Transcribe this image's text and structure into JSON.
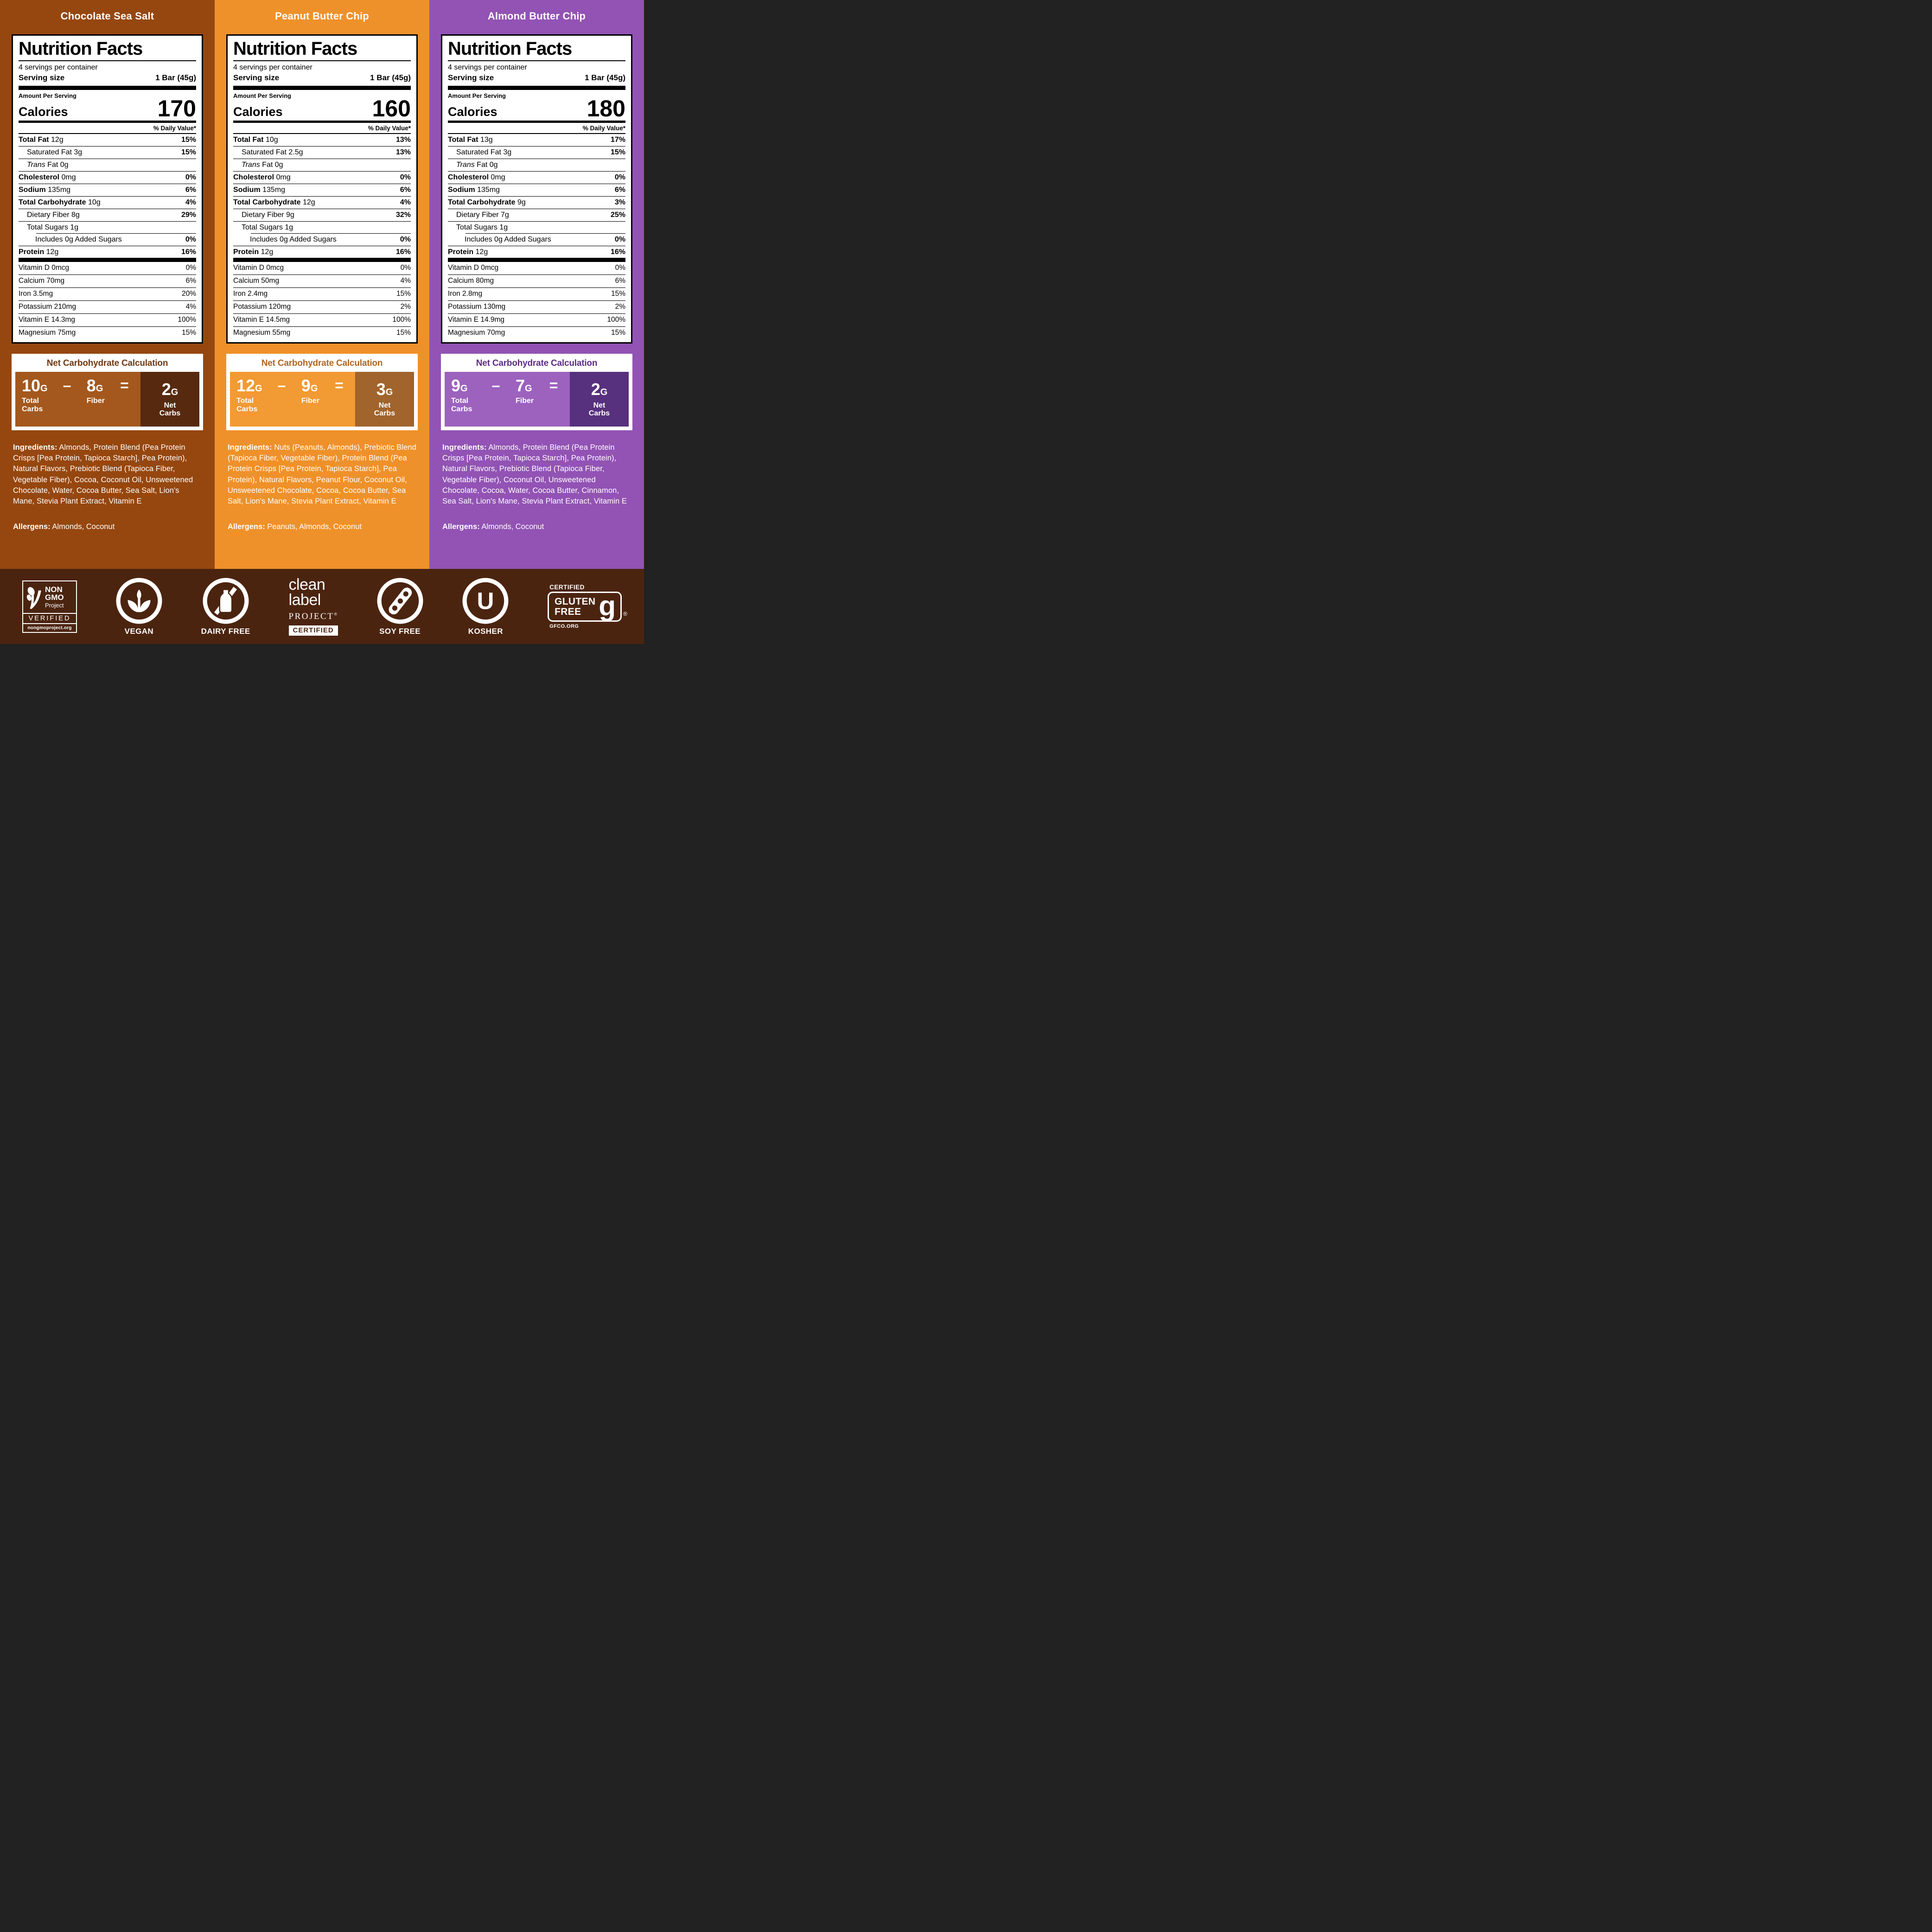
{
  "columns": [
    {
      "flavor": "Chocolate Sea Salt",
      "theme": {
        "bg": "#96470F",
        "nc_title": "#703A16",
        "nc_left": "#A4581D",
        "nc_dark": "#572A10"
      },
      "nutrition": {
        "title": "Nutrition Facts",
        "servings_per_container": "4 servings per container",
        "serving_size_label": "Serving size",
        "serving_size_value": "1 Bar (45g)",
        "amount_per_serving": "Amount Per Serving",
        "calories_label": "Calories",
        "calories_value": "170",
        "daily_value_header": "% Daily Value*",
        "rows": [
          {
            "label": "Total Fat",
            "value": "12g",
            "dv": "15%",
            "bold": true,
            "indent": 0
          },
          {
            "label": "Saturated Fat",
            "value": "3g",
            "dv": "15%",
            "indent": 1
          },
          {
            "italic_prefix": "Trans",
            "label": "Fat",
            "value": "0g",
            "dv": "",
            "indent": 1
          },
          {
            "label": "Cholesterol",
            "value": "0mg",
            "dv": "0%",
            "bold": true,
            "indent": 0
          },
          {
            "label": "Sodium",
            "value": "135mg",
            "dv": "6%",
            "bold": true,
            "indent": 0
          },
          {
            "label": "Total Carbohydrate",
            "value": "10g",
            "dv": "4%",
            "bold": true,
            "indent": 0
          },
          {
            "label": "Dietary Fiber",
            "value": "8g",
            "dv": "29%",
            "indent": 1
          },
          {
            "label": "Total Sugars",
            "value": "1g",
            "dv": "",
            "indent": 1
          },
          {
            "label": "Includes 0g Added Sugars",
            "value": "",
            "dv": "0%",
            "indent": 2
          },
          {
            "label": "Protein",
            "value": "12g",
            "dv": "16%",
            "bold": true,
            "indent": 0
          }
        ],
        "micros": [
          {
            "label": "Vitamin D 0mcg",
            "dv": "0%"
          },
          {
            "label": "Calcium 70mg",
            "dv": "6%"
          },
          {
            "label": "Iron 3.5mg",
            "dv": "20%"
          },
          {
            "label": "Potassium 210mg",
            "dv": "4%"
          },
          {
            "label": "Vitamin E 14.3mg",
            "dv": "100%"
          },
          {
            "label": "Magnesium 75mg",
            "dv": "15%"
          }
        ]
      },
      "net_carbs": {
        "title": "Net Carbohydrate Calculation",
        "total": "10",
        "fiber": "8",
        "net": "2",
        "unit": "G",
        "minus": "–",
        "equals": "=",
        "total_label": "Total Carbs",
        "fiber_label": "Fiber",
        "net_label": "Net Carbs"
      },
      "ingredients_label": "Ingredients:",
      "ingredients": "Almonds, Protein Blend (Pea Protein Crisps [Pea Protein, Tapioca Starch], Pea Protein), Natural Flavors, Prebiotic Blend (Tapioca Fiber, Vegetable Fiber), Cocoa, Coconut Oil, Unsweetened Chocolate, Water, Cocoa Butter, Sea Salt, Lion's Mane, Stevia Plant Extract, Vitamin E",
      "allergens_label": "Allergens:",
      "allergens": "Almonds, Coconut"
    },
    {
      "flavor": "Peanut Butter Chip",
      "theme": {
        "bg": "#EF912A",
        "nc_title": "#B16722",
        "nc_left": "#F29A33",
        "nc_dark": "#A0642C"
      },
      "nutrition": {
        "title": "Nutrition Facts",
        "servings_per_container": "4 servings per container",
        "serving_size_label": "Serving size",
        "serving_size_value": "1 Bar (45g)",
        "amount_per_serving": "Amount Per Serving",
        "calories_label": "Calories",
        "calories_value": "160",
        "daily_value_header": "% Daily Value*",
        "rows": [
          {
            "label": "Total Fat",
            "value": "10g",
            "dv": "13%",
            "bold": true,
            "indent": 0
          },
          {
            "label": "Saturated Fat",
            "value": "2.5g",
            "dv": "13%",
            "indent": 1
          },
          {
            "italic_prefix": "Trans",
            "label": "Fat",
            "value": "0g",
            "dv": "",
            "indent": 1
          },
          {
            "label": "Cholesterol",
            "value": "0mg",
            "dv": "0%",
            "bold": true,
            "indent": 0
          },
          {
            "label": "Sodium",
            "value": "135mg",
            "dv": "6%",
            "bold": true,
            "indent": 0
          },
          {
            "label": "Total Carbohydrate",
            "value": "12g",
            "dv": "4%",
            "bold": true,
            "indent": 0
          },
          {
            "label": "Dietary Fiber",
            "value": "9g",
            "dv": "32%",
            "indent": 1
          },
          {
            "label": "Total Sugars",
            "value": "1g",
            "dv": "",
            "indent": 1
          },
          {
            "label": "Includes 0g Added Sugars",
            "value": "",
            "dv": "0%",
            "indent": 2
          },
          {
            "label": "Protein",
            "value": "12g",
            "dv": "16%",
            "bold": true,
            "indent": 0
          }
        ],
        "micros": [
          {
            "label": "Vitamin D 0mcg",
            "dv": "0%"
          },
          {
            "label": "Calcium 50mg",
            "dv": "4%"
          },
          {
            "label": "Iron 2.4mg",
            "dv": "15%"
          },
          {
            "label": "Potassium 120mg",
            "dv": "2%"
          },
          {
            "label": "Vitamin E 14.5mg",
            "dv": "100%"
          },
          {
            "label": "Magnesium 55mg",
            "dv": "15%"
          }
        ]
      },
      "net_carbs": {
        "title": "Net Carbohydrate Calculation",
        "total": "12",
        "fiber": "9",
        "net": "3",
        "unit": "G",
        "minus": "–",
        "equals": "=",
        "total_label": "Total Carbs",
        "fiber_label": "Fiber",
        "net_label": "Net Carbs"
      },
      "ingredients_label": "Ingredients:",
      "ingredients": "Nuts (Peanuts, Almonds), Prebiotic Blend (Tapioca Fiber, Vegetable Fiber), Protein Blend (Pea Protein Crisps [Pea Protein, Tapioca Starch], Pea Protein), Natural Flavors, Peanut Flour, Coconut Oil, Unsweetened Chocolate, Cocoa, Cocoa Butter, Sea Salt, Lion's Mane, Stevia Plant Extract, Vitamin E",
      "allergens_label": "Allergens:",
      "allergens": "Peanuts, Almonds, Coconut"
    },
    {
      "flavor": "Almond Butter Chip",
      "theme": {
        "bg": "#9253B4",
        "nc_title": "#5C2D84",
        "nc_left": "#9C62BE",
        "nc_dark": "#57307E"
      },
      "nutrition": {
        "title": "Nutrition Facts",
        "servings_per_container": "4 servings per container",
        "serving_size_label": "Serving size",
        "serving_size_value": "1 Bar (45g)",
        "amount_per_serving": "Amount Per Serving",
        "calories_label": "Calories",
        "calories_value": "180",
        "daily_value_header": "% Daily Value*",
        "rows": [
          {
            "label": "Total Fat",
            "value": "13g",
            "dv": "17%",
            "bold": true,
            "indent": 0
          },
          {
            "label": "Saturated Fat",
            "value": "3g",
            "dv": "15%",
            "indent": 1
          },
          {
            "italic_prefix": "Trans",
            "label": "Fat",
            "value": "0g",
            "dv": "",
            "indent": 1
          },
          {
            "label": "Cholesterol",
            "value": "0mg",
            "dv": "0%",
            "bold": true,
            "indent": 0
          },
          {
            "label": "Sodium",
            "value": "135mg",
            "dv": "6%",
            "bold": true,
            "indent": 0
          },
          {
            "label": "Total Carbohydrate",
            "value": "9g",
            "dv": "3%",
            "bold": true,
            "indent": 0
          },
          {
            "label": "Dietary Fiber",
            "value": "7g",
            "dv": "25%",
            "indent": 1
          },
          {
            "label": "Total Sugars",
            "value": "1g",
            "dv": "",
            "indent": 1
          },
          {
            "label": "Includes 0g Added Sugars",
            "value": "",
            "dv": "0%",
            "indent": 2
          },
          {
            "label": "Protein",
            "value": "12g",
            "dv": "16%",
            "bold": true,
            "indent": 0
          }
        ],
        "micros": [
          {
            "label": "Vitamin D 0mcg",
            "dv": "0%"
          },
          {
            "label": "Calcium 80mg",
            "dv": "6%"
          },
          {
            "label": "Iron 2.8mg",
            "dv": "15%"
          },
          {
            "label": "Potassium 130mg",
            "dv": "2%"
          },
          {
            "label": "Vitamin E 14.9mg",
            "dv": "100%"
          },
          {
            "label": "Magnesium 70mg",
            "dv": "15%"
          }
        ]
      },
      "net_carbs": {
        "title": "Net Carbohydrate Calculation",
        "total": "9",
        "fiber": "7",
        "net": "2",
        "unit": "G",
        "minus": "–",
        "equals": "=",
        "total_label": "Total Carbs",
        "fiber_label": "Fiber",
        "net_label": "Net Carbs"
      },
      "ingredients_label": "Ingredients:",
      "ingredients": "Almonds, Protein Blend (Pea Protein Crisps [Pea Protein, Tapioca Starch], Pea Protein), Natural Flavors, Prebiotic Blend (Tapioca Fiber, Vegetable Fiber), Coconut Oil, Unsweetened Chocolate, Cocoa, Water, Cocoa Butter, Cinnamon, Sea Salt, Lion's Mane, Stevia Plant Extract, Vitamin E",
      "allergens_label": "Allergens:",
      "allergens": "Almonds, Coconut"
    }
  ],
  "footer": {
    "bg": "#4B2410",
    "nongmo": {
      "line1": "NON",
      "line2": "GMO",
      "line3": "Project",
      "verified": "VERIFIED",
      "url": "nongmoproject.org"
    },
    "vegan_label": "VEGAN",
    "dairy_label": "DAIRY FREE",
    "cleanlabel": {
      "word1": "clean",
      "word2": "label",
      "project": "PROJECT",
      "reg": "®",
      "certified": "CERTIFIED"
    },
    "soy_label": "SOY FREE",
    "kosher_label": "KOSHER",
    "kosher_letter": "U",
    "gluten": {
      "certified": "CERTIFIED",
      "word1": "GLUTEN",
      "word2": "FREE",
      "g": "g",
      "reg": "®",
      "url": "GFCO.ORG"
    }
  }
}
